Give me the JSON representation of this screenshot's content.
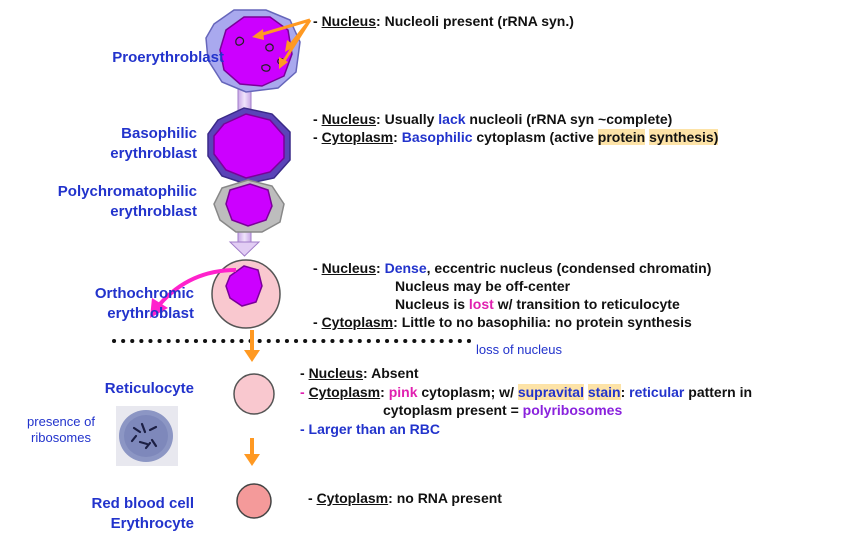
{
  "stages": {
    "proerythroblast": "Proerythroblast",
    "basophilic_1": "Basophilic",
    "basophilic_2": "erythroblast",
    "polychromatophilic_1": "Polychromatophilic",
    "polychromatophilic_2": "erythroblast",
    "orthochromic_1": "Orthochromic",
    "orthochromic_2": "erythroblast",
    "reticulocyte": "Reticulocyte",
    "rbc_1": "Red blood cell",
    "rbc_2": "Erythrocyte"
  },
  "desc": {
    "dash": "- ",
    "nucleus": "Nucleus",
    "cytoplasm": "Cytoplasm",
    "colon": ": ",
    "pro_text": "Nucleoli present (rRNA syn.)",
    "baso_n_a": "Usually ",
    "baso_n_lack": "lack",
    "baso_n_b": " nucleoli (rRNA syn ~complete)",
    "baso_c_basophilic": "Basophilic",
    "baso_c_a": " cytoplasm (active ",
    "baso_c_protein": "protein",
    "baso_c_space": " ",
    "baso_c_synthesis": "synthesis)",
    "ortho_dense": "Dense",
    "ortho_n_a": ", eccentric nucleus (condensed chromatin)",
    "ortho_line2": "Nucleus may be off-center",
    "ortho_line3_a": "Nucleus is ",
    "ortho_lost": "lost",
    "ortho_line3_b": " w/ transition to reticulocyte",
    "ortho_c": "Little to no basophilia: no protein synthesis",
    "ret_n": "Absent",
    "ret_pink": "pink",
    "ret_c_a": " cytoplasm; w/ ",
    "ret_supravital": "supravital",
    "ret_space": " ",
    "ret_stain": "stain",
    "ret_colon": ": ",
    "ret_reticular": "reticular",
    "ret_c_b": " pattern in",
    "ret_line2_a": "cytoplasm present = ",
    "ret_polyribosomes": "polyribosomes",
    "ret_larger": "- Larger than an RBC",
    "rbc_c": "no RNA present"
  },
  "notes": {
    "loss_of_nucleus": "loss of nucleus",
    "presence_1": "presence of",
    "presence_2": "ribosomes"
  },
  "colors": {
    "label_blue": "#2233cc",
    "nucleus_magenta": "#cc00ff",
    "highlight": "#fde3a7",
    "arrow_orange": "#ff9922",
    "arrow_pink": "#ff22cc",
    "pink_cell": "#f9c8cf",
    "rbc": "#f49a9a"
  }
}
